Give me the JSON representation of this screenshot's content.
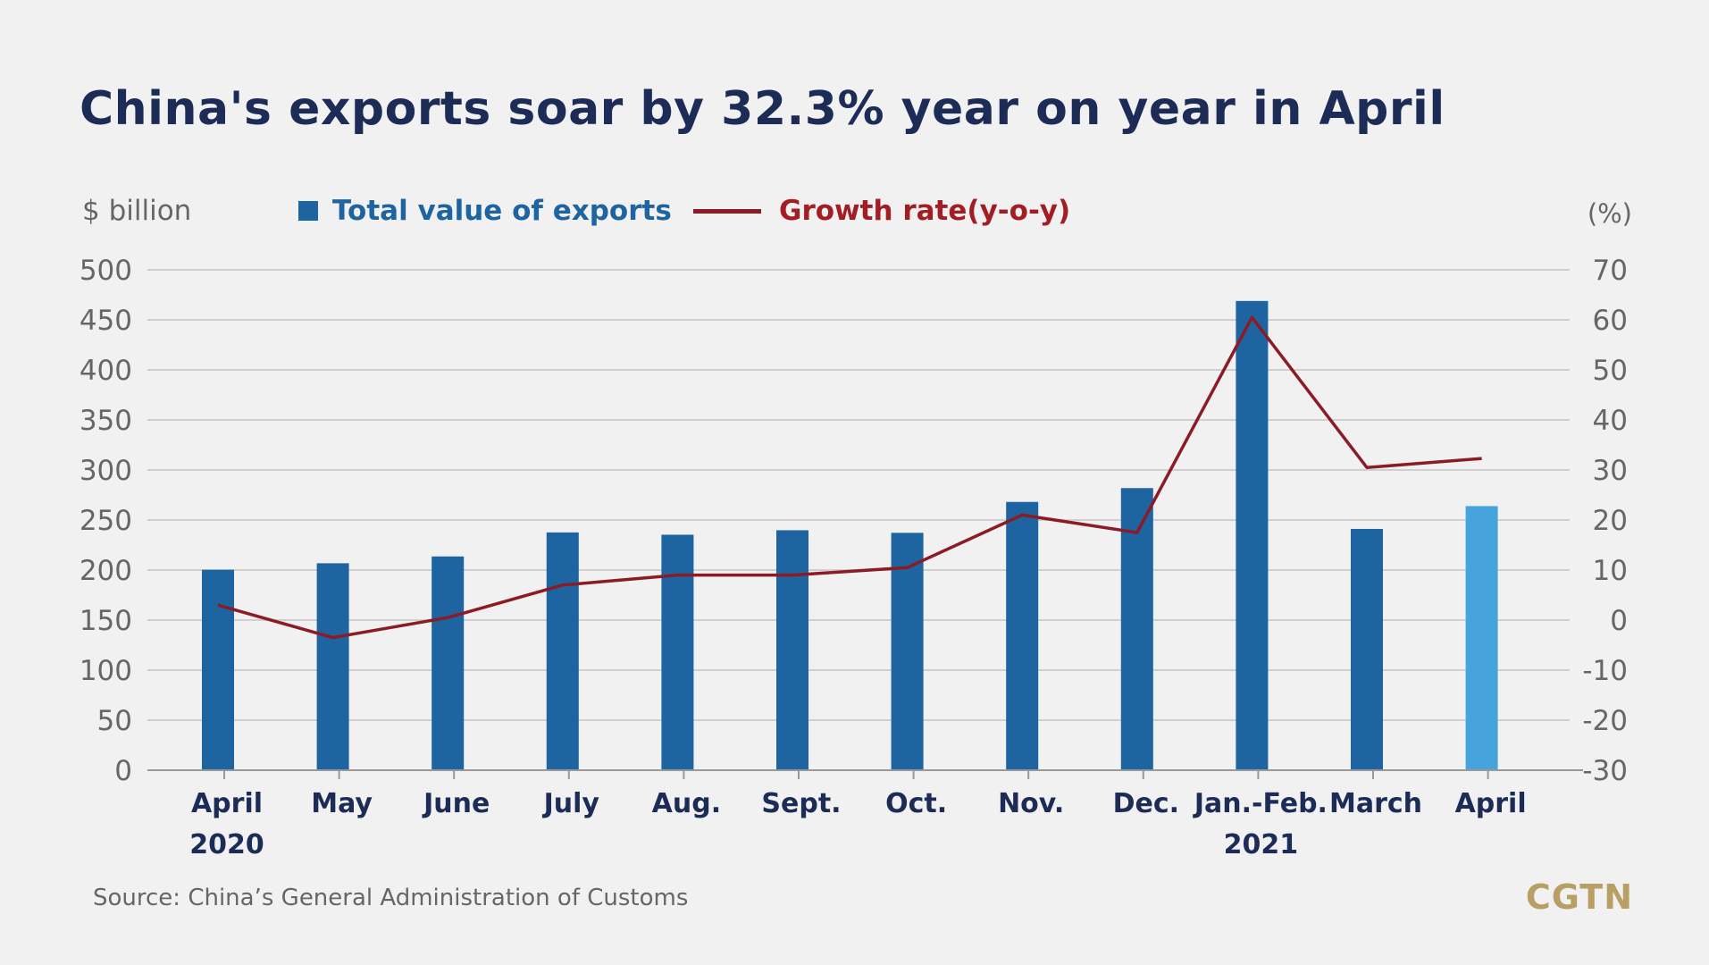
{
  "title": "China's exports soar by 32.3% year on year in April",
  "units": {
    "left": "$ billion",
    "right": "(%)"
  },
  "legend": {
    "bars": "Total value of exports",
    "line": "Growth rate(y-o-y)"
  },
  "source": "Source: China’s General Administration of Customs",
  "logo": "CGTN",
  "colors": {
    "bar": "#1e64a1",
    "bar_highlight": "#47a3dc",
    "line": "#8b1b24",
    "title": "#1c2c57",
    "grid": "#cfcfcf",
    "background": "#f1f1f1"
  },
  "chart_data": {
    "type": "bar",
    "categories": [
      "April",
      "May",
      "June",
      "July",
      "Aug.",
      "Sept.",
      "Oct.",
      "Nov.",
      "Dec.",
      "Jan.-Feb.",
      "March",
      "April"
    ],
    "category_sublabels": [
      "2020",
      "",
      "",
      "",
      "",
      "",
      "",
      "",
      "",
      "2021",
      "",
      ""
    ],
    "series": [
      {
        "name": "Total value of exports",
        "axis": "left",
        "type": "bar",
        "values": [
          200.3,
          206.8,
          213.6,
          237.6,
          235.3,
          239.8,
          237.2,
          268.1,
          281.9,
          468.9,
          241.1,
          263.9
        ],
        "highlight_index": 11
      },
      {
        "name": "Growth rate(y-o-y)",
        "axis": "right",
        "type": "line",
        "values": [
          3.0,
          -3.5,
          0.5,
          7.0,
          9.0,
          9.0,
          10.5,
          21.0,
          17.5,
          60.5,
          30.5,
          32.3
        ]
      }
    ],
    "y_left": {
      "min": 0,
      "max": 500,
      "ticks": [
        "0",
        "50",
        "100",
        "150",
        "200",
        "250",
        "300",
        "350",
        "400",
        "450",
        "500"
      ]
    },
    "y_right": {
      "min": -30,
      "max": 70,
      "ticks": [
        "-30",
        "-20",
        "-10",
        "0",
        "10",
        "20",
        "30",
        "40",
        "50",
        "60",
        "70"
      ]
    },
    "grid": true,
    "legend_position": "top-left"
  }
}
